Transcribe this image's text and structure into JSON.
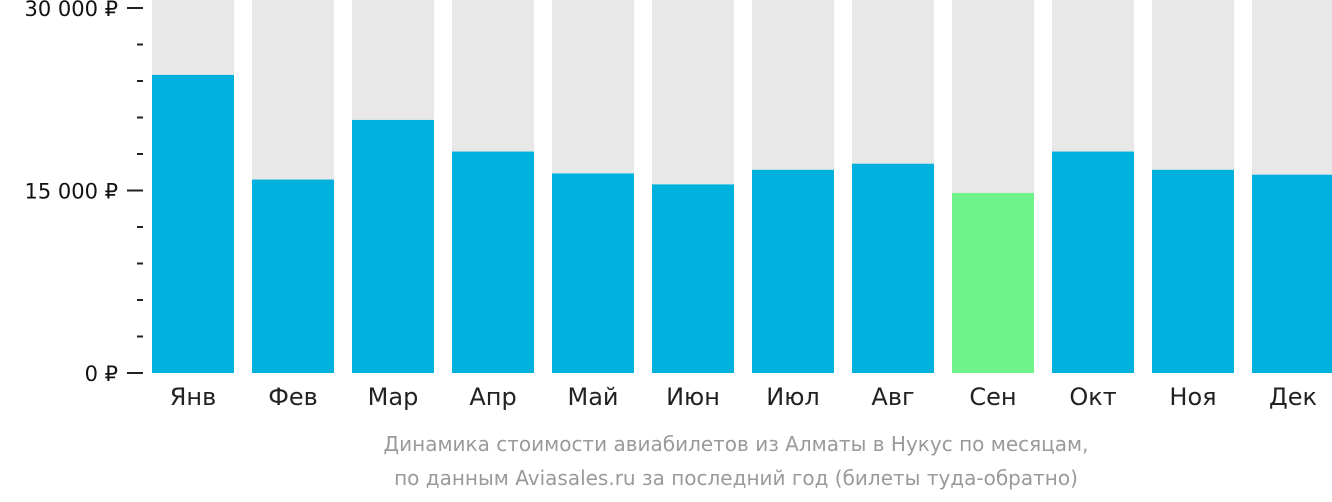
{
  "chart_data": {
    "type": "bar",
    "categories": [
      "Янв",
      "Фев",
      "Мар",
      "Апр",
      "Май",
      "Июн",
      "Июл",
      "Авг",
      "Сен",
      "Окт",
      "Ноя",
      "Дек"
    ],
    "values": [
      24500,
      15900,
      20800,
      18200,
      16400,
      15500,
      16700,
      17200,
      14800,
      18200,
      16700,
      16300
    ],
    "ylim": [
      0,
      30000
    ],
    "yticks": [
      {
        "value": 0,
        "label": "0 ₽"
      },
      {
        "value": 15000,
        "label": "15 000 ₽"
      },
      {
        "value": 30000,
        "label": "30 000 ₽"
      }
    ],
    "minor_tick_step": 3000,
    "highlight_index": 8,
    "colors": {
      "bar": "#00b0dd",
      "highlight": "#6ef28a",
      "background_bar": "#e8e8e8",
      "axis": "#222222"
    },
    "caption_lines": [
      "Динамика стоимости авиабилетов из Алматы в Нукус по месяцам,",
      "по данным Aviasales.ru за последний год (билеты туда-обратно)"
    ]
  }
}
